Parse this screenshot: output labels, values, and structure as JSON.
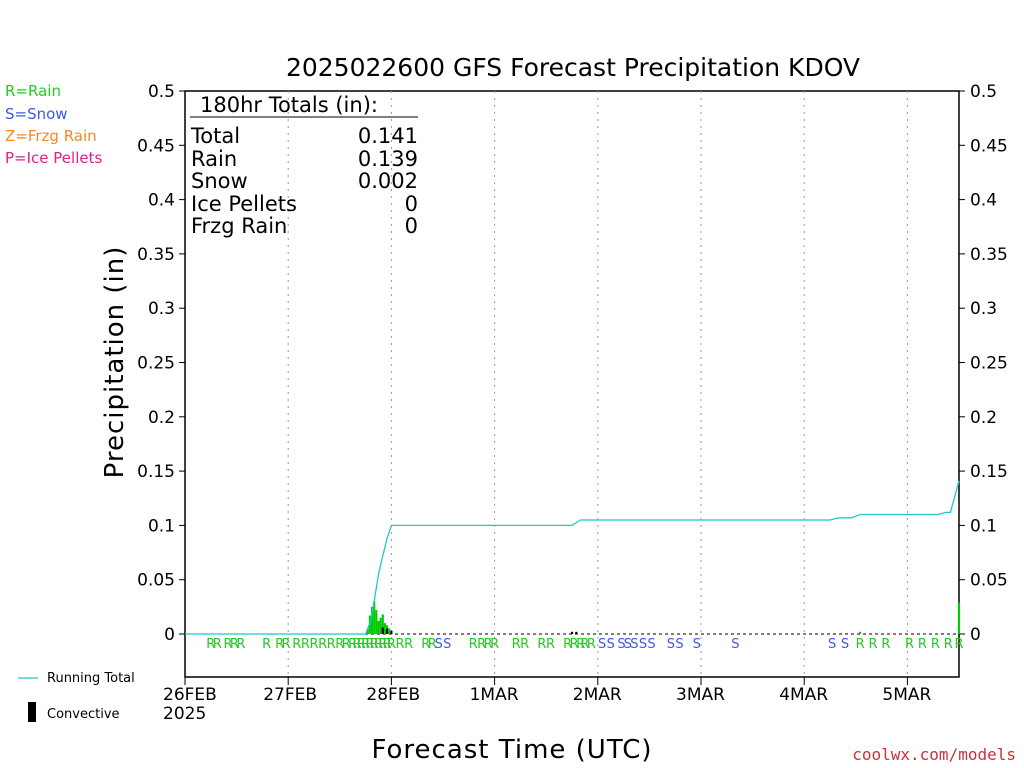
{
  "title": "2025022600 GFS Forecast Precipitation KDOV",
  "legend_types": [
    {
      "text": "R=Rain",
      "color": "#22cc22"
    },
    {
      "text": "S=Snow",
      "color": "#3a5ae6"
    },
    {
      "text": "Z=Frzg Rain",
      "color": "#f08a2a"
    },
    {
      "text": "P=Ice Pellets",
      "color": "#e0208a"
    }
  ],
  "totals": {
    "header": "180hr Totals (in):",
    "rows": [
      {
        "label": "Total",
        "value": "0.141"
      },
      {
        "label": "Rain",
        "value": "0.139"
      },
      {
        "label": "Snow",
        "value": "0.002"
      },
      {
        "label": "Ice Pellets",
        "value": "0"
      },
      {
        "label": "Frzg Rain",
        "value": "0"
      }
    ]
  },
  "bottom_legend": {
    "running_total": "Running Total",
    "convective": "Convective"
  },
  "year_label": "2025",
  "credit": "coolwx.com/models",
  "colors": {
    "running_total": "#22c8c8",
    "rain": "#00cc00",
    "snow": "#3a5ae6",
    "convective": "#000000"
  },
  "chart_data": {
    "type": "bar",
    "title": "2025022600 GFS Forecast Precipitation KDOV",
    "xlabel": "Forecast Time (UTC)",
    "ylabel": "Precipitation (in)",
    "ylim": [
      0,
      0.5
    ],
    "xlim_hours": [
      0,
      180
    ],
    "yticks": [
      "0",
      "0.05",
      "0.1",
      "0.15",
      "0.2",
      "0.25",
      "0.3",
      "0.35",
      "0.4",
      "0.45",
      "0.5"
    ],
    "xticks": [
      {
        "hour": 0,
        "label": "26FEB"
      },
      {
        "hour": 24,
        "label": "27FEB"
      },
      {
        "hour": 48,
        "label": "28FEB"
      },
      {
        "hour": 72,
        "label": "1MAR"
      },
      {
        "hour": 96,
        "label": "2MAR"
      },
      {
        "hour": 120,
        "label": "3MAR"
      },
      {
        "hour": 144,
        "label": "4MAR"
      },
      {
        "hour": 168,
        "label": "5MAR"
      }
    ],
    "grid": "vertical dotted at day boundaries",
    "series": [
      {
        "name": "Running Total",
        "type": "line",
        "hours": [
          0,
          42,
          43,
          44,
          45,
          46,
          47,
          48,
          52,
          72,
          90,
          92,
          150,
          152,
          155,
          157,
          175,
          177,
          178,
          180
        ],
        "values": [
          0,
          0,
          0.01,
          0.03,
          0.055,
          0.072,
          0.088,
          0.1,
          0.1,
          0.1,
          0.1,
          0.105,
          0.105,
          0.107,
          0.107,
          0.11,
          0.11,
          0.112,
          0.112,
          0.141
        ]
      },
      {
        "name": "Rain",
        "type": "bar",
        "hours": [
          42.5,
          43,
          43.5,
          44,
          44.5,
          45,
          45.5,
          46,
          46.5,
          47,
          47.5,
          48,
          90,
          91,
          157,
          176,
          180
        ],
        "values": [
          0.005,
          0.017,
          0.025,
          0.03,
          0.022,
          0.012,
          0.015,
          0.018,
          0.01,
          0.008,
          0.005,
          0.002,
          0.001,
          0.001,
          0.002,
          0.001,
          0.029
        ]
      },
      {
        "name": "Convective",
        "type": "bar",
        "hours": [
          46,
          47,
          48,
          90,
          91
        ],
        "values": [
          0.006,
          0.005,
          0.003,
          0.002,
          0.002
        ]
      }
    ],
    "ptype_labels": [
      {
        "hour": 6,
        "t": "R"
      },
      {
        "hour": 7.5,
        "t": "R"
      },
      {
        "hour": 10,
        "t": "R"
      },
      {
        "hour": 11.5,
        "t": "R"
      },
      {
        "hour": 13,
        "t": "R"
      },
      {
        "hour": 19,
        "t": "R"
      },
      {
        "hour": 22,
        "t": "R"
      },
      {
        "hour": 23.5,
        "t": "R"
      },
      {
        "hour": 26,
        "t": "R"
      },
      {
        "hour": 28,
        "t": "R"
      },
      {
        "hour": 30,
        "t": "R"
      },
      {
        "hour": 32,
        "t": "R"
      },
      {
        "hour": 34,
        "t": "R"
      },
      {
        "hour": 36,
        "t": "R"
      },
      {
        "hour": 37.5,
        "t": "R"
      },
      {
        "hour": 39,
        "t": "R"
      },
      {
        "hour": 40,
        "t": "R"
      },
      {
        "hour": 41,
        "t": "R"
      },
      {
        "hour": 42,
        "t": "R"
      },
      {
        "hour": 43,
        "t": "R"
      },
      {
        "hour": 44,
        "t": "R"
      },
      {
        "hour": 45,
        "t": "R"
      },
      {
        "hour": 46,
        "t": "R"
      },
      {
        "hour": 47,
        "t": "R"
      },
      {
        "hour": 48,
        "t": "R"
      },
      {
        "hour": 50,
        "t": "R"
      },
      {
        "hour": 52,
        "t": "R"
      },
      {
        "hour": 56,
        "t": "R"
      },
      {
        "hour": 57.5,
        "t": "R"
      },
      {
        "hour": 59,
        "t": "S"
      },
      {
        "hour": 61,
        "t": "S"
      },
      {
        "hour": 67,
        "t": "R"
      },
      {
        "hour": 69,
        "t": "R"
      },
      {
        "hour": 70.5,
        "t": "R"
      },
      {
        "hour": 72,
        "t": "R"
      },
      {
        "hour": 77,
        "t": "R"
      },
      {
        "hour": 79,
        "t": "R"
      },
      {
        "hour": 83,
        "t": "R"
      },
      {
        "hour": 85,
        "t": "R"
      },
      {
        "hour": 89,
        "t": "R"
      },
      {
        "hour": 90.5,
        "t": "R"
      },
      {
        "hour": 92,
        "t": "R"
      },
      {
        "hour": 93,
        "t": "R"
      },
      {
        "hour": 94.5,
        "t": "R"
      },
      {
        "hour": 97,
        "t": "S"
      },
      {
        "hour": 99,
        "t": "S"
      },
      {
        "hour": 101.5,
        "t": "S"
      },
      {
        "hour": 103,
        "t": "S"
      },
      {
        "hour": 104.5,
        "t": "S"
      },
      {
        "hour": 106.5,
        "t": "S"
      },
      {
        "hour": 108.5,
        "t": "S"
      },
      {
        "hour": 113,
        "t": "S"
      },
      {
        "hour": 115,
        "t": "S"
      },
      {
        "hour": 119,
        "t": "S"
      },
      {
        "hour": 128,
        "t": "S"
      },
      {
        "hour": 150.5,
        "t": "S"
      },
      {
        "hour": 153.5,
        "t": "S"
      },
      {
        "hour": 157,
        "t": "R"
      },
      {
        "hour": 160,
        "t": "R"
      },
      {
        "hour": 163,
        "t": "R"
      },
      {
        "hour": 168.5,
        "t": "R"
      },
      {
        "hour": 171.5,
        "t": "R"
      },
      {
        "hour": 174.5,
        "t": "R"
      },
      {
        "hour": 177.5,
        "t": "R"
      },
      {
        "hour": 180,
        "t": "R"
      }
    ]
  }
}
